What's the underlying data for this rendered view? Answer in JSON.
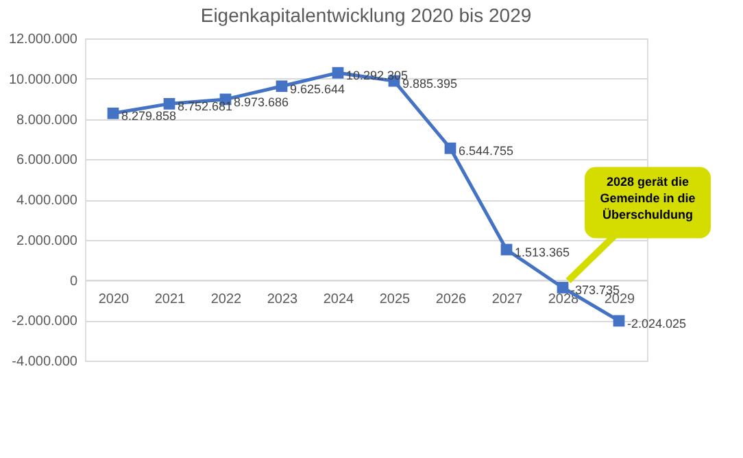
{
  "chart_data": {
    "type": "line",
    "title": "Eigenkapitalentwicklung 2020 bis 2029",
    "categories": [
      "2020",
      "2021",
      "2022",
      "2023",
      "2024",
      "2025",
      "2026",
      "2027",
      "2028",
      "2029"
    ],
    "series": [
      {
        "color": "#4472c4",
        "values": [
          8279858,
          8752681,
          8973686,
          9625644,
          10292305,
          9885395,
          6544755,
          1513365,
          -373735,
          -2024025
        ]
      }
    ],
    "ylim": [
      -4000000,
      12000000
    ],
    "yticks": [
      {
        "value": -4000000,
        "label": "-4.000.000"
      },
      {
        "value": -2000000,
        "label": "-2.000.000"
      },
      {
        "value": 0,
        "label": "0"
      },
      {
        "value": 2000000,
        "label": "2.000.000"
      },
      {
        "value": 4000000,
        "label": "4.000.000"
      },
      {
        "value": 6000000,
        "label": "6.000.000"
      },
      {
        "value": 8000000,
        "label": "8.000.000"
      },
      {
        "value": 10000000,
        "label": "10.000.000"
      },
      {
        "value": 12000000,
        "label": "12.000.000"
      }
    ],
    "value_labels": [
      "8.279.858",
      "8.752.681",
      "8.973.686",
      "9.625.644",
      "10.292.305",
      "9.885.395",
      "6.544.755",
      "1.513.365",
      "-373.735",
      "-2.024.025"
    ],
    "grid": "y",
    "marker": "square",
    "line_style": "solid",
    "annotations": [
      {
        "text": "2028 gerät die Gemeinde in die Überschuldung",
        "x": "2028",
        "y": -373735
      }
    ]
  }
}
